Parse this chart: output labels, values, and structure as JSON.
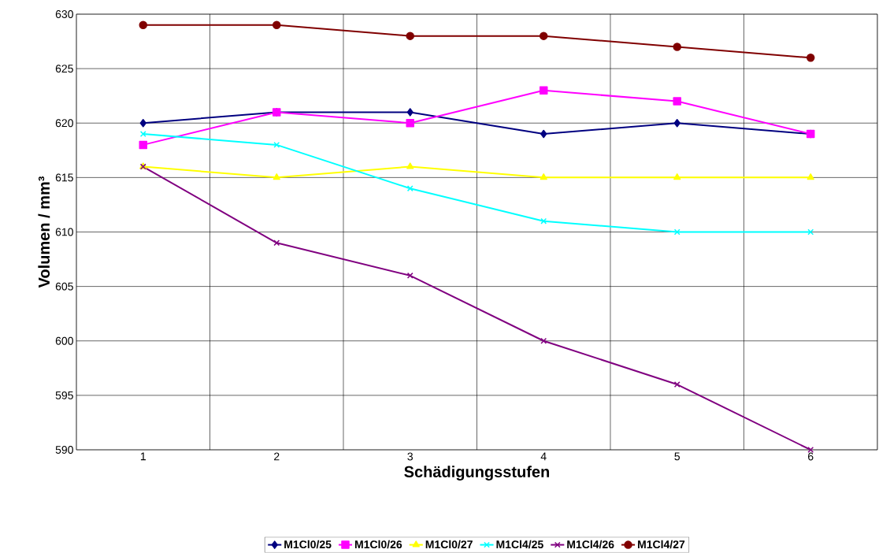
{
  "chart_data": {
    "type": "line",
    "xlabel": "Schädigungsstufen",
    "ylabel": "Volumen / mm³",
    "categories": [
      "1",
      "2",
      "3",
      "4",
      "5",
      "6"
    ],
    "series": [
      {
        "name": "M1Cl0/25",
        "color": "#000080",
        "marker": "diamond",
        "values": [
          620,
          621,
          621,
          619,
          620,
          619
        ]
      },
      {
        "name": "M1Cl0/26",
        "color": "#ff00ff",
        "marker": "square",
        "values": [
          618,
          621,
          620,
          623,
          622,
          619
        ]
      },
      {
        "name": "M1Cl0/27",
        "color": "#ffff00",
        "marker": "triangle",
        "values": [
          616,
          615,
          616,
          615,
          615,
          615
        ]
      },
      {
        "name": "M1Cl4/25",
        "color": "#00ffff",
        "marker": "cross",
        "values": [
          619,
          618,
          614,
          611,
          610,
          610
        ]
      },
      {
        "name": "M1Cl4/26",
        "color": "#800080",
        "marker": "cross",
        "values": [
          616,
          609,
          606,
          600,
          596,
          590
        ]
      },
      {
        "name": "M1Cl4/27",
        "color": "#800000",
        "marker": "circle",
        "values": [
          629,
          629,
          628,
          628,
          627,
          626
        ]
      }
    ],
    "ylim": [
      590,
      630
    ],
    "yticks": [
      590,
      595,
      600,
      605,
      610,
      615,
      620,
      625,
      630
    ],
    "grid": true,
    "legend": "bottom"
  }
}
